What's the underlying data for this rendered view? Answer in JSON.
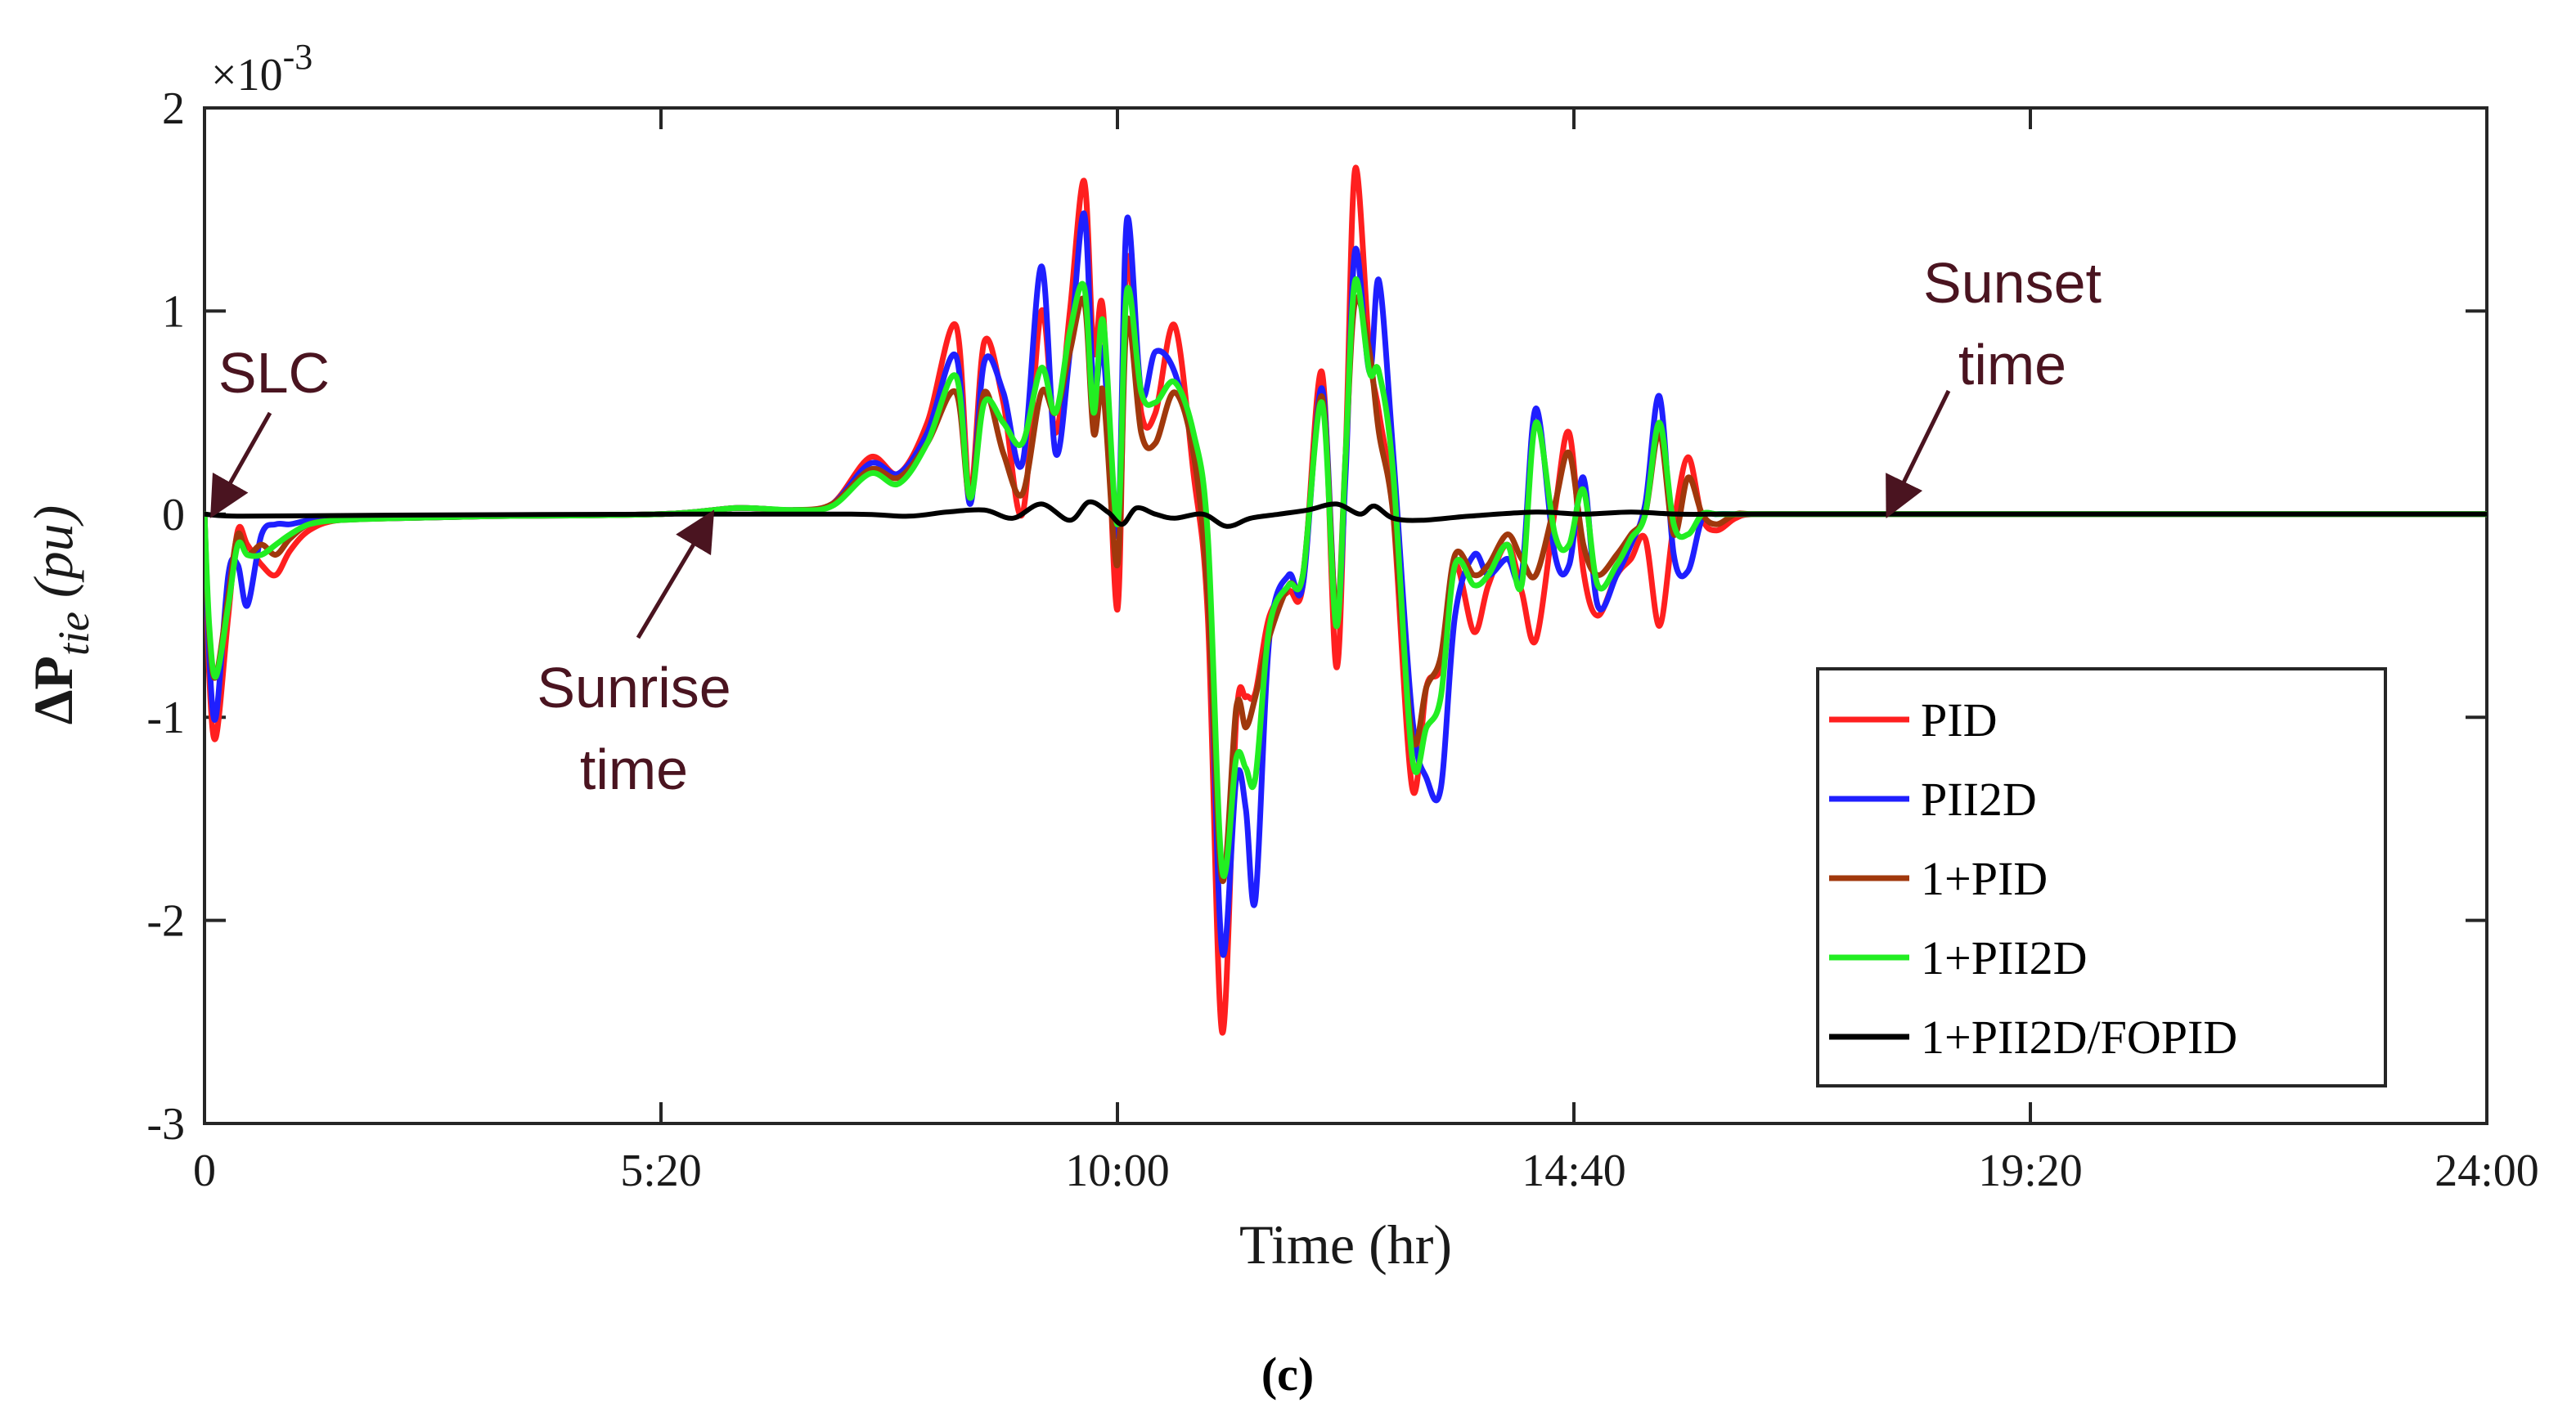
{
  "chart_data": {
    "type": "line",
    "sub_caption": "(c)",
    "xlabel": "Time (hr)",
    "ylabel_prefix": "ΔP",
    "ylabel_subscript": "tie",
    "ylabel_unit": " (pu)",
    "exponent_base": "×10",
    "exponent_power": "-3",
    "xlim": [
      0,
      24
    ],
    "ylim": [
      -3,
      2
    ],
    "x_ticks": [
      0,
      4.8,
      9.6,
      14.4,
      19.2,
      24
    ],
    "x_tick_labels": [
      "0",
      "5:20",
      "10:00",
      "14:40",
      "19:20",
      "24:00"
    ],
    "y_ticks": [
      -3,
      -2,
      -1,
      0,
      1,
      2
    ],
    "y_tick_labels": [
      "-3",
      "-2",
      "-1",
      "0",
      "1",
      "2"
    ],
    "legend_position": "bottom-right",
    "annotations": [
      {
        "id": "slc",
        "lines": [
          "SLC"
        ],
        "target": [
          0.05,
          0.0
        ]
      },
      {
        "id": "sunrise",
        "lines": [
          "Sunrise",
          "time"
        ],
        "target": [
          5.5,
          0.0
        ]
      },
      {
        "id": "sunset",
        "lines": [
          "Sunset",
          "time"
        ],
        "target": [
          17.7,
          0.0
        ]
      }
    ],
    "series": [
      {
        "name": "PID",
        "color": "#ff1f1f",
        "x": [
          0,
          0.05,
          0.12,
          0.25,
          0.35,
          0.45,
          0.6,
          0.75,
          0.9,
          1.1,
          1.4,
          2,
          3,
          4.8,
          5.6,
          6.2,
          6.6,
          7,
          7.3,
          7.6,
          7.9,
          8.05,
          8.2,
          8.4,
          8.6,
          8.8,
          8.95,
          9.1,
          9.25,
          9.35,
          9.45,
          9.6,
          9.7,
          9.85,
          10,
          10.2,
          10.4,
          10.55,
          10.7,
          10.85,
          10.95,
          11.05,
          11.2,
          11.4,
          11.55,
          11.75,
          11.9,
          12.0,
          12.1,
          12.25,
          12.35,
          12.5,
          12.7,
          12.85,
          13.0,
          13.15,
          13.35,
          13.5,
          13.7,
          13.85,
          14.0,
          14.2,
          14.35,
          14.5,
          14.65,
          14.85,
          15.0,
          15.15,
          15.3,
          15.45,
          15.6,
          15.75,
          15.9,
          16.1,
          16.3,
          17,
          19,
          24
        ],
        "y": [
          0,
          -0.8,
          -1.1,
          -0.5,
          -0.08,
          -0.15,
          -0.25,
          -0.3,
          -0.18,
          -0.08,
          -0.03,
          -0.02,
          -0.01,
          0.0,
          0.03,
          0.02,
          0.05,
          0.28,
          0.2,
          0.45,
          0.93,
          0.1,
          0.85,
          0.55,
          0.0,
          1.0,
          0.4,
          1.0,
          1.64,
          0.8,
          1.0,
          -0.47,
          1.25,
          0.5,
          0.5,
          0.93,
          0.2,
          -0.5,
          -2.55,
          -1.0,
          -0.9,
          -0.88,
          -0.5,
          -0.38,
          -0.35,
          0.7,
          -0.75,
          0.3,
          1.7,
          0.8,
          0.5,
          0.0,
          -1.35,
          -0.85,
          -0.75,
          -0.25,
          -0.58,
          -0.35,
          -0.15,
          -0.38,
          -0.62,
          0.02,
          0.4,
          -0.28,
          -0.5,
          -0.3,
          -0.22,
          -0.12,
          -0.55,
          -0.05,
          0.28,
          -0.02,
          -0.08,
          -0.02,
          0.0,
          0.0,
          0.0,
          0.0
        ]
      },
      {
        "name": "PII2D",
        "color": "#1f1fff",
        "x": [
          0,
          0.05,
          0.12,
          0.25,
          0.35,
          0.45,
          0.6,
          0.75,
          0.9,
          1.1,
          1.4,
          2,
          3,
          4.8,
          5.6,
          6.2,
          6.6,
          7,
          7.3,
          7.6,
          7.9,
          8.05,
          8.2,
          8.4,
          8.6,
          8.8,
          8.95,
          9.1,
          9.25,
          9.35,
          9.45,
          9.6,
          9.7,
          9.85,
          10,
          10.2,
          10.4,
          10.55,
          10.7,
          10.85,
          10.95,
          11.05,
          11.2,
          11.4,
          11.55,
          11.75,
          11.9,
          12.0,
          12.1,
          12.25,
          12.35,
          12.5,
          12.7,
          12.85,
          13.0,
          13.15,
          13.35,
          13.5,
          13.7,
          13.85,
          14.0,
          14.2,
          14.35,
          14.5,
          14.65,
          14.85,
          15.0,
          15.15,
          15.3,
          15.45,
          15.6,
          15.75,
          15.9,
          16.1,
          16.3,
          17,
          19,
          24
        ],
        "y": [
          0,
          -0.7,
          -1.0,
          -0.3,
          -0.25,
          -0.45,
          -0.1,
          -0.05,
          -0.05,
          -0.03,
          -0.02,
          -0.02,
          -0.01,
          0.0,
          0.03,
          0.02,
          0.05,
          0.25,
          0.2,
          0.4,
          0.78,
          0.05,
          0.75,
          0.6,
          0.25,
          1.22,
          0.3,
          0.8,
          1.48,
          0.6,
          0.8,
          -0.1,
          1.45,
          0.6,
          0.8,
          0.7,
          0.3,
          -0.3,
          -2.15,
          -1.3,
          -1.45,
          -1.9,
          -0.6,
          -0.3,
          -0.35,
          0.62,
          -0.5,
          0.2,
          1.3,
          0.7,
          1.15,
          0.3,
          -1.0,
          -1.3,
          -1.35,
          -0.5,
          -0.2,
          -0.3,
          -0.22,
          -0.3,
          0.52,
          -0.2,
          -0.25,
          0.18,
          -0.45,
          -0.3,
          -0.15,
          0.05,
          0.58,
          -0.2,
          -0.28,
          -0.02,
          0.0,
          0.0,
          0.0,
          0.0,
          0.0,
          0.0
        ]
      },
      {
        "name": "1+PID",
        "color": "#a0380c",
        "x": [
          0,
          0.05,
          0.12,
          0.25,
          0.35,
          0.45,
          0.6,
          0.75,
          0.9,
          1.1,
          1.4,
          2,
          3,
          4.8,
          5.6,
          6.2,
          6.6,
          7,
          7.3,
          7.6,
          7.9,
          8.05,
          8.2,
          8.4,
          8.6,
          8.8,
          8.95,
          9.1,
          9.25,
          9.35,
          9.45,
          9.6,
          9.7,
          9.85,
          10,
          10.2,
          10.4,
          10.55,
          10.7,
          10.85,
          10.95,
          11.05,
          11.2,
          11.4,
          11.55,
          11.75,
          11.9,
          12.0,
          12.1,
          12.25,
          12.35,
          12.5,
          12.7,
          12.85,
          13.0,
          13.15,
          13.35,
          13.5,
          13.7,
          13.85,
          14.0,
          14.2,
          14.35,
          14.5,
          14.65,
          14.85,
          15.0,
          15.15,
          15.3,
          15.45,
          15.6,
          15.75,
          15.9,
          16.1,
          16.3,
          17,
          19,
          24
        ],
        "y": [
          0,
          -0.6,
          -0.8,
          -0.4,
          -0.1,
          -0.2,
          -0.15,
          -0.2,
          -0.12,
          -0.05,
          -0.03,
          -0.02,
          -0.01,
          0.0,
          0.03,
          0.02,
          0.05,
          0.22,
          0.18,
          0.35,
          0.6,
          0.08,
          0.6,
          0.3,
          0.1,
          0.6,
          0.5,
          0.8,
          1.05,
          0.4,
          0.6,
          -0.25,
          0.95,
          0.4,
          0.35,
          0.6,
          0.3,
          -0.4,
          -1.8,
          -0.95,
          -1.05,
          -0.9,
          -0.6,
          -0.35,
          -0.3,
          0.58,
          -0.5,
          0.3,
          1.05,
          0.8,
          0.4,
          0.0,
          -1.1,
          -0.85,
          -0.7,
          -0.2,
          -0.3,
          -0.25,
          -0.1,
          -0.22,
          -0.3,
          0.05,
          0.3,
          -0.15,
          -0.3,
          -0.2,
          -0.1,
          0.0,
          0.4,
          -0.1,
          0.18,
          0.0,
          -0.05,
          0.0,
          0.0,
          0.0,
          0.0,
          0.0
        ]
      },
      {
        "name": "1+PII2D",
        "color": "#22ee22",
        "x": [
          0,
          0.05,
          0.12,
          0.25,
          0.35,
          0.45,
          0.6,
          0.75,
          0.9,
          1.1,
          1.4,
          2,
          3,
          4.8,
          5.6,
          6.2,
          6.6,
          7,
          7.3,
          7.6,
          7.9,
          8.05,
          8.2,
          8.4,
          8.6,
          8.8,
          8.95,
          9.1,
          9.25,
          9.35,
          9.45,
          9.6,
          9.7,
          9.85,
          10,
          10.2,
          10.4,
          10.55,
          10.7,
          10.85,
          10.95,
          11.05,
          11.2,
          11.4,
          11.55,
          11.75,
          11.9,
          12.0,
          12.1,
          12.25,
          12.35,
          12.5,
          12.7,
          12.85,
          13.0,
          13.15,
          13.35,
          13.5,
          13.7,
          13.85,
          14.0,
          14.2,
          14.35,
          14.5,
          14.65,
          14.85,
          15.0,
          15.15,
          15.3,
          15.45,
          15.6,
          15.75,
          15.9,
          16.1,
          16.3,
          17,
          19,
          24
        ],
        "y": [
          0,
          -0.55,
          -0.8,
          -0.45,
          -0.15,
          -0.2,
          -0.2,
          -0.15,
          -0.1,
          -0.05,
          -0.03,
          -0.02,
          -0.01,
          0.0,
          0.03,
          0.02,
          0.04,
          0.2,
          0.15,
          0.35,
          0.68,
          0.08,
          0.55,
          0.45,
          0.35,
          0.72,
          0.5,
          0.9,
          1.12,
          0.5,
          0.95,
          -0.05,
          1.1,
          0.6,
          0.55,
          0.65,
          0.4,
          -0.1,
          -1.75,
          -1.2,
          -1.25,
          -1.3,
          -0.55,
          -0.35,
          -0.3,
          0.55,
          -0.55,
          0.3,
          1.15,
          0.7,
          0.7,
          0.2,
          -1.2,
          -1.05,
          -0.9,
          -0.25,
          -0.35,
          -0.3,
          -0.15,
          -0.35,
          0.45,
          -0.1,
          -0.15,
          0.12,
          -0.35,
          -0.25,
          -0.12,
          0.0,
          0.45,
          -0.05,
          -0.1,
          0.0,
          0.0,
          0.0,
          0.0,
          0.0,
          0.0,
          0.0
        ]
      },
      {
        "name": "1+PII2D/FOPID",
        "color": "#000000",
        "x": [
          0,
          0.4,
          2,
          5,
          6.8,
          7.4,
          7.8,
          8.2,
          8.5,
          8.8,
          9.1,
          9.3,
          9.5,
          9.65,
          9.8,
          10.0,
          10.2,
          10.5,
          10.75,
          11.0,
          11.3,
          11.6,
          11.9,
          12.15,
          12.3,
          12.5,
          12.8,
          13.3,
          14.0,
          14.5,
          15.0,
          15.5,
          16.0,
          17,
          24
        ],
        "y": [
          0,
          -0.01,
          -0.005,
          0.0,
          0.0,
          -0.01,
          0.01,
          0.02,
          -0.02,
          0.05,
          -0.03,
          0.06,
          0.01,
          -0.05,
          0.03,
          0.0,
          -0.02,
          0.0,
          -0.06,
          -0.02,
          0.0,
          0.02,
          0.05,
          0.0,
          0.04,
          -0.02,
          -0.03,
          -0.01,
          0.01,
          0.0,
          0.01,
          0.0,
          0.0,
          0.0,
          0.0
        ]
      }
    ]
  }
}
